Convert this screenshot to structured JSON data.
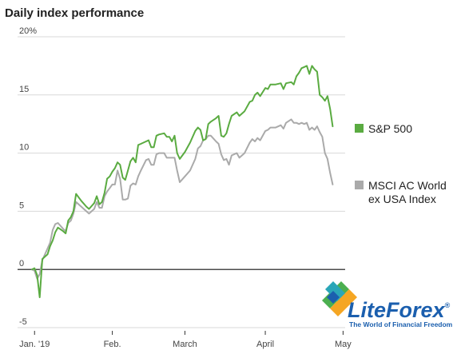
{
  "colors": {
    "sp500": "#5aab41",
    "msci": "#aaaaaa",
    "grid": "#d8d8d8",
    "zero_line": "#111111",
    "logo_blue": "#1b5fae",
    "logo_orange": "#f5a623",
    "logo_green": "#4caf50",
    "logo_teal": "#2aa6b8"
  },
  "chart_data": {
    "type": "line",
    "title": "Daily index performance",
    "ylim": [
      -5,
      20
    ],
    "y_ticks": [
      {
        "value": 20,
        "label": "20%"
      },
      {
        "value": 15,
        "label": "15"
      },
      {
        "value": 10,
        "label": "10"
      },
      {
        "value": 5,
        "label": "5"
      },
      {
        "value": 0,
        "label": "0"
      },
      {
        "value": -5,
        "label": "-5"
      }
    ],
    "x_ticks": [
      {
        "date": "2019-01-02",
        "label": "Jan. '19"
      },
      {
        "date": "2019-02-01",
        "label": "Feb."
      },
      {
        "date": "2019-03-01",
        "label": "March"
      },
      {
        "date": "2019-04-01",
        "label": "April"
      },
      {
        "date": "2019-05-01",
        "label": "May"
      }
    ],
    "grid": true,
    "legend_position": "right",
    "series": [
      {
        "name": "S&P 500",
        "color_key": "sp500",
        "points": [
          [
            "2019-01-01",
            0.0
          ],
          [
            "2019-01-02",
            0.1
          ],
          [
            "2019-01-03",
            -0.5
          ],
          [
            "2019-01-04",
            -2.4
          ],
          [
            "2019-01-05",
            0.9
          ],
          [
            "2019-01-07",
            1.3
          ],
          [
            "2019-01-08",
            2.0
          ],
          [
            "2019-01-09",
            2.5
          ],
          [
            "2019-01-10",
            3.2
          ],
          [
            "2019-01-11",
            3.6
          ],
          [
            "2019-01-13",
            3.3
          ],
          [
            "2019-01-14",
            3.1
          ],
          [
            "2019-01-15",
            4.2
          ],
          [
            "2019-01-16",
            4.5
          ],
          [
            "2019-01-17",
            5.0
          ],
          [
            "2019-01-18",
            6.5
          ],
          [
            "2019-01-20",
            5.9
          ],
          [
            "2019-01-22",
            5.4
          ],
          [
            "2019-01-23",
            5.2
          ],
          [
            "2019-01-25",
            5.7
          ],
          [
            "2019-01-26",
            6.3
          ],
          [
            "2019-01-27",
            5.6
          ],
          [
            "2019-01-28",
            5.8
          ],
          [
            "2019-01-29",
            6.6
          ],
          [
            "2019-01-30",
            7.8
          ],
          [
            "2019-01-31",
            8.0
          ],
          [
            "2019-02-01",
            8.4
          ],
          [
            "2019-02-02",
            8.7
          ],
          [
            "2019-02-03",
            9.2
          ],
          [
            "2019-02-04",
            9.0
          ],
          [
            "2019-02-05",
            7.9
          ],
          [
            "2019-02-06",
            7.7
          ],
          [
            "2019-02-07",
            8.5
          ],
          [
            "2019-02-08",
            9.3
          ],
          [
            "2019-02-09",
            9.6
          ],
          [
            "2019-02-10",
            9.2
          ],
          [
            "2019-02-11",
            10.7
          ],
          [
            "2019-02-12",
            10.8
          ],
          [
            "2019-02-14",
            11.0
          ],
          [
            "2019-02-15",
            11.1
          ],
          [
            "2019-02-16",
            10.5
          ],
          [
            "2019-02-17",
            10.5
          ],
          [
            "2019-02-18",
            11.5
          ],
          [
            "2019-02-19",
            11.6
          ],
          [
            "2019-02-21",
            11.7
          ],
          [
            "2019-02-22",
            11.4
          ],
          [
            "2019-02-23",
            11.4
          ],
          [
            "2019-02-24",
            11.0
          ],
          [
            "2019-02-25",
            11.5
          ],
          [
            "2019-02-26",
            10.0
          ],
          [
            "2019-02-27",
            9.5
          ],
          [
            "2019-03-01",
            10.1
          ],
          [
            "2019-03-03",
            10.9
          ],
          [
            "2019-03-05",
            11.9
          ],
          [
            "2019-03-06",
            12.2
          ],
          [
            "2019-03-07",
            12.0
          ],
          [
            "2019-03-08",
            11.1
          ],
          [
            "2019-03-09",
            11.2
          ],
          [
            "2019-03-10",
            12.5
          ],
          [
            "2019-03-11",
            12.7
          ],
          [
            "2019-03-13",
            13.0
          ],
          [
            "2019-03-14",
            13.2
          ],
          [
            "2019-03-15",
            11.5
          ],
          [
            "2019-03-16",
            11.4
          ],
          [
            "2019-03-17",
            11.7
          ],
          [
            "2019-03-18",
            12.5
          ],
          [
            "2019-03-19",
            13.2
          ],
          [
            "2019-03-21",
            13.5
          ],
          [
            "2019-03-22",
            13.2
          ],
          [
            "2019-03-24",
            13.6
          ],
          [
            "2019-03-26",
            14.4
          ],
          [
            "2019-03-27",
            14.5
          ],
          [
            "2019-03-28",
            15.0
          ],
          [
            "2019-03-29",
            15.2
          ],
          [
            "2019-03-30",
            14.9
          ],
          [
            "2019-04-01",
            15.6
          ],
          [
            "2019-04-02",
            15.5
          ],
          [
            "2019-04-03",
            15.9
          ],
          [
            "2019-04-05",
            15.9
          ],
          [
            "2019-04-07",
            16.0
          ],
          [
            "2019-04-08",
            15.5
          ],
          [
            "2019-04-09",
            16.0
          ],
          [
            "2019-04-11",
            16.1
          ],
          [
            "2019-04-12",
            15.9
          ],
          [
            "2019-04-13",
            16.6
          ],
          [
            "2019-04-14",
            16.9
          ],
          [
            "2019-04-15",
            17.3
          ],
          [
            "2019-04-16",
            17.4
          ],
          [
            "2019-04-17",
            17.5
          ],
          [
            "2019-04-18",
            16.8
          ],
          [
            "2019-04-19",
            17.5
          ],
          [
            "2019-04-20",
            17.2
          ],
          [
            "2019-04-21",
            17.0
          ],
          [
            "2019-04-22",
            15.0
          ],
          [
            "2019-04-23",
            14.8
          ],
          [
            "2019-04-24",
            14.5
          ],
          [
            "2019-04-25",
            14.9
          ],
          [
            "2019-04-26",
            13.8
          ],
          [
            "2019-04-27",
            12.3
          ]
        ]
      },
      {
        "name": "MSCI AC World ex USA Index",
        "color_key": "msci",
        "points": [
          [
            "2019-01-01",
            0.0
          ],
          [
            "2019-01-02",
            -0.1
          ],
          [
            "2019-01-03",
            -0.8
          ],
          [
            "2019-01-04",
            -0.4
          ],
          [
            "2019-01-05",
            0.8
          ],
          [
            "2019-01-07",
            1.8
          ],
          [
            "2019-01-08",
            2.3
          ],
          [
            "2019-01-09",
            3.4
          ],
          [
            "2019-01-10",
            3.9
          ],
          [
            "2019-01-11",
            4.0
          ],
          [
            "2019-01-13",
            3.5
          ],
          [
            "2019-01-14",
            3.3
          ],
          [
            "2019-01-15",
            4.0
          ],
          [
            "2019-01-16",
            4.2
          ],
          [
            "2019-01-17",
            4.8
          ],
          [
            "2019-01-18",
            5.8
          ],
          [
            "2019-01-20",
            5.4
          ],
          [
            "2019-01-22",
            5.0
          ],
          [
            "2019-01-23",
            4.8
          ],
          [
            "2019-01-25",
            5.2
          ],
          [
            "2019-01-26",
            5.8
          ],
          [
            "2019-01-27",
            5.3
          ],
          [
            "2019-01-28",
            5.3
          ],
          [
            "2019-01-29",
            6.3
          ],
          [
            "2019-01-30",
            6.7
          ],
          [
            "2019-01-31",
            7.0
          ],
          [
            "2019-02-01",
            7.3
          ],
          [
            "2019-02-02",
            7.3
          ],
          [
            "2019-02-03",
            8.5
          ],
          [
            "2019-02-04",
            7.8
          ],
          [
            "2019-02-05",
            6.0
          ],
          [
            "2019-02-06",
            6.0
          ],
          [
            "2019-02-07",
            6.1
          ],
          [
            "2019-02-08",
            7.2
          ],
          [
            "2019-02-09",
            7.4
          ],
          [
            "2019-02-10",
            7.3
          ],
          [
            "2019-02-11",
            8.0
          ],
          [
            "2019-02-12",
            8.5
          ],
          [
            "2019-02-14",
            9.4
          ],
          [
            "2019-02-15",
            9.5
          ],
          [
            "2019-02-16",
            9.0
          ],
          [
            "2019-02-17",
            9.0
          ],
          [
            "2019-02-18",
            9.9
          ],
          [
            "2019-02-19",
            10.0
          ],
          [
            "2019-02-21",
            10.0
          ],
          [
            "2019-02-22",
            9.6
          ],
          [
            "2019-02-23",
            9.6
          ],
          [
            "2019-02-24",
            9.6
          ],
          [
            "2019-02-25",
            9.6
          ],
          [
            "2019-02-26",
            8.5
          ],
          [
            "2019-02-27",
            7.5
          ],
          [
            "2019-03-01",
            8.0
          ],
          [
            "2019-03-03",
            8.5
          ],
          [
            "2019-03-05",
            9.5
          ],
          [
            "2019-03-06",
            10.4
          ],
          [
            "2019-03-07",
            10.6
          ],
          [
            "2019-03-08",
            11.1
          ],
          [
            "2019-03-09",
            11.2
          ],
          [
            "2019-03-10",
            11.5
          ],
          [
            "2019-03-11",
            11.5
          ],
          [
            "2019-03-13",
            11.0
          ],
          [
            "2019-03-14",
            10.8
          ],
          [
            "2019-03-15",
            9.9
          ],
          [
            "2019-03-16",
            9.4
          ],
          [
            "2019-03-17",
            9.5
          ],
          [
            "2019-03-18",
            9.0
          ],
          [
            "2019-03-19",
            9.8
          ],
          [
            "2019-03-21",
            10.0
          ],
          [
            "2019-03-22",
            9.6
          ],
          [
            "2019-03-24",
            10.0
          ],
          [
            "2019-03-26",
            10.9
          ],
          [
            "2019-03-27",
            11.2
          ],
          [
            "2019-03-28",
            11.0
          ],
          [
            "2019-03-29",
            11.3
          ],
          [
            "2019-03-30",
            11.1
          ],
          [
            "2019-04-01",
            11.9
          ],
          [
            "2019-04-02",
            12.0
          ],
          [
            "2019-04-03",
            12.2
          ],
          [
            "2019-04-05",
            12.2
          ],
          [
            "2019-04-07",
            12.4
          ],
          [
            "2019-04-08",
            12.1
          ],
          [
            "2019-04-09",
            12.6
          ],
          [
            "2019-04-11",
            12.9
          ],
          [
            "2019-04-12",
            12.6
          ],
          [
            "2019-04-13",
            12.6
          ],
          [
            "2019-04-14",
            12.5
          ],
          [
            "2019-04-15",
            12.6
          ],
          [
            "2019-04-16",
            12.5
          ],
          [
            "2019-04-17",
            12.6
          ],
          [
            "2019-04-18",
            12.0
          ],
          [
            "2019-04-19",
            12.2
          ],
          [
            "2019-04-20",
            12.0
          ],
          [
            "2019-04-21",
            12.3
          ],
          [
            "2019-04-22",
            11.8
          ],
          [
            "2019-04-23",
            11.4
          ],
          [
            "2019-04-24",
            10.0
          ],
          [
            "2019-04-25",
            9.5
          ],
          [
            "2019-04-26",
            8.3
          ],
          [
            "2019-04-27",
            7.3
          ]
        ]
      }
    ]
  },
  "logo": {
    "brand_prefix": "Lite",
    "brand_suffix": "Forex",
    "registered_mark": "®",
    "tagline": "The World of Financial Freedom"
  }
}
